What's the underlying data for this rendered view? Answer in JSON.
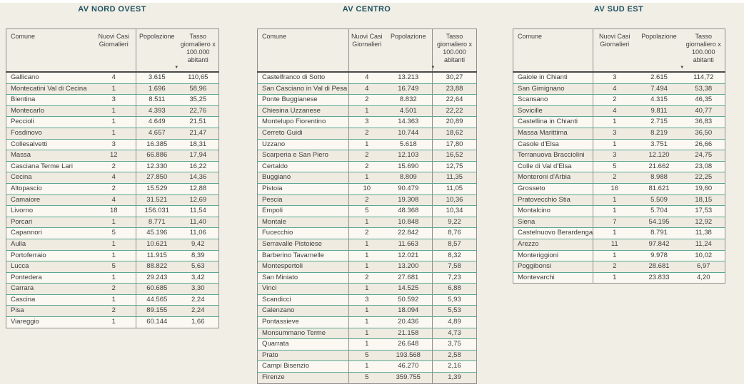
{
  "page": {
    "background": "#f1eee6",
    "accent_line_color": "#5ba793",
    "title_color": "#1e5361",
    "sort_icon_glyph": "▼"
  },
  "chart_data": [
    {
      "type": "table",
      "title": "AV NORD OVEST",
      "columns": {
        "comune": "Comune",
        "nuovi_casi": "Nuovi Casi\nGiornalieri",
        "popolazione": "Popolazione",
        "tasso": "Tasso\ngiornaliero x\n100.000\nabitanti"
      },
      "rows": [
        [
          "Gallicano",
          "4",
          "3.615",
          "110,65"
        ],
        [
          "Montecatini Val di Cecina",
          "1",
          "1.696",
          "58,96"
        ],
        [
          "Bientina",
          "3",
          "8.511",
          "35,25"
        ],
        [
          "Montecarlo",
          "1",
          "4.393",
          "22,76"
        ],
        [
          "Peccioli",
          "1",
          "4.649",
          "21,51"
        ],
        [
          "Fosdinovo",
          "1",
          "4.657",
          "21,47"
        ],
        [
          "Collesalvetti",
          "3",
          "16.385",
          "18,31"
        ],
        [
          "Massa",
          "12",
          "66.886",
          "17,94"
        ],
        [
          "Casciana Terme Lari",
          "2",
          "12.330",
          "16,22"
        ],
        [
          "Cecina",
          "4",
          "27.850",
          "14,36"
        ],
        [
          "Altopascio",
          "2",
          "15.529",
          "12,88"
        ],
        [
          "Camaiore",
          "4",
          "31.521",
          "12,69"
        ],
        [
          "Livorno",
          "18",
          "156.031",
          "11,54"
        ],
        [
          "Porcari",
          "1",
          "8.771",
          "11,40"
        ],
        [
          "Capannori",
          "5",
          "45.196",
          "11,06"
        ],
        [
          "Aulla",
          "1",
          "10.621",
          "9,42"
        ],
        [
          "Portoferraio",
          "1",
          "11.915",
          "8,39"
        ],
        [
          "Lucca",
          "5",
          "88.822",
          "5,63"
        ],
        [
          "Pontedera",
          "1",
          "29.243",
          "3,42"
        ],
        [
          "Carrara",
          "2",
          "60.685",
          "3,30"
        ],
        [
          "Cascina",
          "1",
          "44.565",
          "2,24"
        ],
        [
          "Pisa",
          "2",
          "89.155",
          "2,24"
        ],
        [
          "Viareggio",
          "1",
          "60.144",
          "1,66"
        ]
      ]
    },
    {
      "type": "table",
      "title": "AV CENTRO",
      "columns": {
        "comune": "Comune",
        "nuovi_casi": "Nuovi Casi\nGiornalieri",
        "popolazione": "Popolazione",
        "tasso": "Tasso\ngiornaliero x\n100.000\nabitanti"
      },
      "rows": [
        [
          "Castelfranco di Sotto",
          "4",
          "13.213",
          "30,27"
        ],
        [
          "San Casciano in Val di Pesa",
          "4",
          "16.749",
          "23,88"
        ],
        [
          "Ponte Buggianese",
          "2",
          "8.832",
          "22,64"
        ],
        [
          "Chiesina Uzzanese",
          "1",
          "4.501",
          "22,22"
        ],
        [
          "Montelupo Fiorentino",
          "3",
          "14.363",
          "20,89"
        ],
        [
          "Cerreto Guidi",
          "2",
          "10.744",
          "18,62"
        ],
        [
          "Uzzano",
          "1",
          "5.618",
          "17,80"
        ],
        [
          "Scarperia e San Piero",
          "2",
          "12.103",
          "16,52"
        ],
        [
          "Certaldo",
          "2",
          "15.690",
          "12,75"
        ],
        [
          "Buggiano",
          "1",
          "8.809",
          "11,35"
        ],
        [
          "Pistoia",
          "10",
          "90.479",
          "11,05"
        ],
        [
          "Pescia",
          "2",
          "19.308",
          "10,36"
        ],
        [
          "Empoli",
          "5",
          "48.368",
          "10,34"
        ],
        [
          "Montale",
          "1",
          "10.848",
          "9,22"
        ],
        [
          "Fucecchio",
          "2",
          "22.842",
          "8,76"
        ],
        [
          "Serravalle Pistoiese",
          "1",
          "11.663",
          "8,57"
        ],
        [
          "Barberino Tavarnelle",
          "1",
          "12.021",
          "8,32"
        ],
        [
          "Montespertoli",
          "1",
          "13.200",
          "7,58"
        ],
        [
          "San Miniato",
          "2",
          "27.681",
          "7,23"
        ],
        [
          "Vinci",
          "1",
          "14.525",
          "6,88"
        ],
        [
          "Scandicci",
          "3",
          "50.592",
          "5,93"
        ],
        [
          "Calenzano",
          "1",
          "18.094",
          "5,53"
        ],
        [
          "Pontassieve",
          "1",
          "20.436",
          "4,89"
        ],
        [
          "Monsummano Terme",
          "1",
          "21.158",
          "4,73"
        ],
        [
          "Quarrata",
          "1",
          "26.648",
          "3,75"
        ],
        [
          "Prato",
          "5",
          "193.568",
          "2,58"
        ],
        [
          "Campi Bisenzio",
          "1",
          "46.270",
          "2,16"
        ],
        [
          "Firenze",
          "5",
          "359.755",
          "1,39"
        ]
      ]
    },
    {
      "type": "table",
      "title": "AV SUD EST",
      "columns": {
        "comune": "Comune",
        "nuovi_casi": "Nuovi Casi\nGiornalieri",
        "popolazione": "Popolazione",
        "tasso": "Tasso\ngiornaliero x\n100.000\nabitanti"
      },
      "rows": [
        [
          "Gaiole in Chianti",
          "3",
          "2.615",
          "114,72"
        ],
        [
          "San Gimignano",
          "4",
          "7.494",
          "53,38"
        ],
        [
          "Scansano",
          "2",
          "4.315",
          "46,35"
        ],
        [
          "Sovicille",
          "4",
          "9.811",
          "40,77"
        ],
        [
          "Castellina in Chianti",
          "1",
          "2.715",
          "36,83"
        ],
        [
          "Massa Marittima",
          "3",
          "8.219",
          "36,50"
        ],
        [
          "Casole d'Elsa",
          "1",
          "3.751",
          "26,66"
        ],
        [
          "Terranuova Bracciolini",
          "3",
          "12.120",
          "24,75"
        ],
        [
          "Colle di Val d'Elsa",
          "5",
          "21.662",
          "23,08"
        ],
        [
          "Monteroni d'Arbia",
          "2",
          "8.988",
          "22,25"
        ],
        [
          "Grosseto",
          "16",
          "81.621",
          "19,60"
        ],
        [
          "Pratovecchio Stia",
          "1",
          "5.509",
          "18,15"
        ],
        [
          "Montalcino",
          "1",
          "5.704",
          "17,53"
        ],
        [
          "Siena",
          "7",
          "54.195",
          "12,92"
        ],
        [
          "Castelnuovo Berardenga",
          "1",
          "8.791",
          "11,38"
        ],
        [
          "Arezzo",
          "11",
          "97.842",
          "11,24"
        ],
        [
          "Monteriggioni",
          "1",
          "9.978",
          "10,02"
        ],
        [
          "Poggibonsi",
          "2",
          "28.681",
          "6,97"
        ],
        [
          "Montevarchi",
          "1",
          "23.833",
          "4,20"
        ]
      ]
    }
  ]
}
